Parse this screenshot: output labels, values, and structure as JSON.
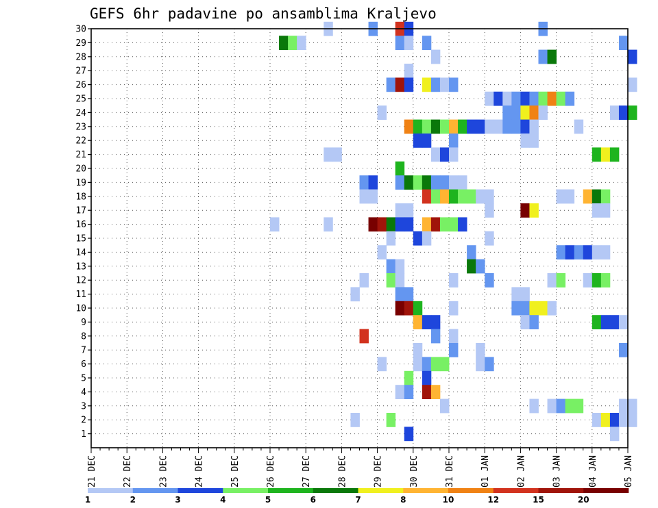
{
  "chart_data": {
    "type": "heatmap",
    "title": "GEFS 6hr padavine po ansamblima Kraljevo",
    "xlabel": "",
    "ylabel": "",
    "x_ticks": [
      "21 DEC",
      "22 DEC",
      "23 DEC",
      "24 DEC",
      "25 DEC",
      "26 DEC",
      "27 DEC",
      "28 DEC",
      "29 DEC",
      "30 DEC",
      "31 DEC",
      "01 JAN",
      "02 JAN",
      "03 JAN",
      "04 JAN",
      "05 JAN"
    ],
    "y_ticks": [
      "1",
      "2",
      "3",
      "4",
      "5",
      "6",
      "7",
      "8",
      "9",
      "10",
      "11",
      "12",
      "13",
      "14",
      "15",
      "16",
      "17",
      "18",
      "19",
      "20",
      "21",
      "22",
      "23",
      "24",
      "25",
      "26",
      "27",
      "28",
      "29",
      "30"
    ],
    "ylim": [
      0,
      30
    ],
    "x_steps_per_day": 4,
    "grid": true,
    "legend": {
      "placement": "bottom",
      "labels": [
        "1",
        "2",
        "3",
        "4",
        "5",
        "6",
        "7",
        "8",
        "10",
        "12",
        "15",
        "20"
      ],
      "colors": [
        "#b4c8f5",
        "#6496f0",
        "#1e46dc",
        "#78f064",
        "#1eb41e",
        "#0a780a",
        "#f0f01e",
        "#ffb432",
        "#f08214",
        "#d2321e",
        "#a0140a",
        "#780000"
      ]
    },
    "cells": [
      [
        30,
        26,
        0
      ],
      [
        30,
        31,
        1
      ],
      [
        30,
        34,
        9
      ],
      [
        30,
        35,
        2
      ],
      [
        30,
        50,
        1
      ],
      [
        29,
        21,
        5
      ],
      [
        29,
        22,
        3
      ],
      [
        29,
        23,
        0
      ],
      [
        29,
        34,
        1
      ],
      [
        29,
        35,
        0
      ],
      [
        29,
        37,
        1
      ],
      [
        29,
        59,
        1
      ],
      [
        28,
        38,
        0
      ],
      [
        28,
        50,
        1
      ],
      [
        28,
        51,
        5
      ],
      [
        28,
        60,
        2
      ],
      [
        27,
        35,
        0
      ],
      [
        26,
        33,
        1
      ],
      [
        26,
        34,
        10
      ],
      [
        26,
        35,
        2
      ],
      [
        26,
        37,
        6
      ],
      [
        26,
        38,
        1
      ],
      [
        26,
        39,
        0
      ],
      [
        26,
        40,
        1
      ],
      [
        26,
        60,
        0
      ],
      [
        25,
        44,
        0
      ],
      [
        25,
        45,
        2
      ],
      [
        25,
        46,
        0
      ],
      [
        25,
        47,
        1
      ],
      [
        25,
        48,
        2
      ],
      [
        25,
        49,
        1
      ],
      [
        25,
        50,
        3
      ],
      [
        25,
        51,
        8
      ],
      [
        25,
        52,
        3
      ],
      [
        25,
        53,
        1
      ],
      [
        24,
        32,
        0
      ],
      [
        24,
        46,
        1
      ],
      [
        24,
        47,
        1
      ],
      [
        24,
        48,
        6
      ],
      [
        24,
        49,
        8
      ],
      [
        24,
        50,
        0
      ],
      [
        24,
        58,
        0
      ],
      [
        24,
        59,
        2
      ],
      [
        24,
        60,
        4
      ],
      [
        23,
        35,
        8
      ],
      [
        23,
        36,
        4
      ],
      [
        23,
        37,
        3
      ],
      [
        23,
        38,
        5
      ],
      [
        23,
        39,
        3
      ],
      [
        23,
        40,
        7
      ],
      [
        23,
        41,
        4
      ],
      [
        23,
        42,
        2
      ],
      [
        23,
        43,
        2
      ],
      [
        23,
        44,
        0
      ],
      [
        23,
        45,
        0
      ],
      [
        23,
        46,
        1
      ],
      [
        23,
        47,
        1
      ],
      [
        23,
        48,
        2
      ],
      [
        23,
        49,
        0
      ],
      [
        23,
        54,
        0
      ],
      [
        22,
        36,
        2
      ],
      [
        22,
        37,
        2
      ],
      [
        22,
        40,
        1
      ],
      [
        22,
        48,
        0
      ],
      [
        22,
        49,
        0
      ],
      [
        21,
        26,
        0
      ],
      [
        21,
        27,
        0
      ],
      [
        21,
        38,
        0
      ],
      [
        21,
        39,
        2
      ],
      [
        21,
        40,
        0
      ],
      [
        21,
        56,
        4
      ],
      [
        21,
        57,
        6
      ],
      [
        21,
        58,
        4
      ],
      [
        20,
        34,
        4
      ],
      [
        19,
        30,
        1
      ],
      [
        19,
        31,
        2
      ],
      [
        19,
        34,
        1
      ],
      [
        19,
        35,
        5
      ],
      [
        19,
        36,
        3
      ],
      [
        19,
        37,
        5
      ],
      [
        19,
        38,
        1
      ],
      [
        19,
        39,
        1
      ],
      [
        19,
        40,
        0
      ],
      [
        19,
        41,
        0
      ],
      [
        18,
        30,
        0
      ],
      [
        18,
        31,
        0
      ],
      [
        18,
        37,
        9
      ],
      [
        18,
        38,
        3
      ],
      [
        18,
        39,
        7
      ],
      [
        18,
        40,
        4
      ],
      [
        18,
        41,
        3
      ],
      [
        18,
        42,
        3
      ],
      [
        18,
        43,
        0
      ],
      [
        18,
        44,
        0
      ],
      [
        18,
        52,
        0
      ],
      [
        18,
        53,
        0
      ],
      [
        18,
        55,
        7
      ],
      [
        18,
        56,
        5
      ],
      [
        18,
        57,
        3
      ],
      [
        17,
        34,
        0
      ],
      [
        17,
        35,
        0
      ],
      [
        17,
        44,
        0
      ],
      [
        17,
        48,
        11
      ],
      [
        17,
        49,
        6
      ],
      [
        17,
        56,
        0
      ],
      [
        17,
        57,
        0
      ],
      [
        16,
        20,
        0
      ],
      [
        16,
        26,
        0
      ],
      [
        16,
        31,
        11
      ],
      [
        16,
        32,
        10
      ],
      [
        16,
        33,
        5
      ],
      [
        16,
        34,
        2
      ],
      [
        16,
        35,
        2
      ],
      [
        16,
        37,
        7
      ],
      [
        16,
        38,
        10
      ],
      [
        16,
        39,
        3
      ],
      [
        16,
        40,
        3
      ],
      [
        16,
        41,
        2
      ],
      [
        15,
        33,
        0
      ],
      [
        15,
        36,
        2
      ],
      [
        15,
        37,
        0
      ],
      [
        15,
        44,
        0
      ],
      [
        14,
        32,
        0
      ],
      [
        14,
        42,
        1
      ],
      [
        14,
        52,
        1
      ],
      [
        14,
        53,
        2
      ],
      [
        14,
        54,
        1
      ],
      [
        14,
        55,
        2
      ],
      [
        14,
        56,
        0
      ],
      [
        14,
        57,
        0
      ],
      [
        13,
        33,
        1
      ],
      [
        13,
        34,
        0
      ],
      [
        13,
        42,
        5
      ],
      [
        13,
        43,
        1
      ],
      [
        12,
        30,
        0
      ],
      [
        12,
        33,
        3
      ],
      [
        12,
        34,
        0
      ],
      [
        12,
        40,
        0
      ],
      [
        12,
        44,
        1
      ],
      [
        12,
        51,
        0
      ],
      [
        12,
        52,
        3
      ],
      [
        12,
        55,
        0
      ],
      [
        12,
        56,
        4
      ],
      [
        12,
        57,
        3
      ],
      [
        11,
        29,
        0
      ],
      [
        11,
        34,
        1
      ],
      [
        11,
        35,
        1
      ],
      [
        11,
        47,
        0
      ],
      [
        11,
        48,
        0
      ],
      [
        10,
        34,
        11
      ],
      [
        10,
        35,
        10
      ],
      [
        10,
        36,
        4
      ],
      [
        10,
        40,
        0
      ],
      [
        10,
        47,
        1
      ],
      [
        10,
        48,
        1
      ],
      [
        10,
        49,
        6
      ],
      [
        10,
        50,
        6
      ],
      [
        10,
        51,
        0
      ],
      [
        9,
        36,
        7
      ],
      [
        9,
        37,
        2
      ],
      [
        9,
        38,
        2
      ],
      [
        9,
        48,
        0
      ],
      [
        9,
        49,
        1
      ],
      [
        9,
        56,
        4
      ],
      [
        9,
        57,
        2
      ],
      [
        9,
        58,
        2
      ],
      [
        9,
        59,
        0
      ],
      [
        8,
        30,
        9
      ],
      [
        8,
        38,
        1
      ],
      [
        8,
        40,
        0
      ],
      [
        7,
        36,
        0
      ],
      [
        7,
        40,
        1
      ],
      [
        7,
        43,
        0
      ],
      [
        7,
        59,
        1
      ],
      [
        6,
        32,
        0
      ],
      [
        6,
        36,
        0
      ],
      [
        6,
        37,
        1
      ],
      [
        6,
        38,
        3
      ],
      [
        6,
        39,
        3
      ],
      [
        6,
        43,
        0
      ],
      [
        6,
        44,
        1
      ],
      [
        5,
        35,
        3
      ],
      [
        5,
        37,
        2
      ],
      [
        4,
        34,
        0
      ],
      [
        4,
        35,
        1
      ],
      [
        4,
        37,
        10
      ],
      [
        4,
        38,
        7
      ],
      [
        3,
        39,
        0
      ],
      [
        3,
        49,
        0
      ],
      [
        3,
        51,
        0
      ],
      [
        3,
        52,
        1
      ],
      [
        3,
        53,
        3
      ],
      [
        3,
        54,
        3
      ],
      [
        3,
        59,
        0
      ],
      [
        3,
        60,
        0
      ],
      [
        2,
        29,
        0
      ],
      [
        2,
        33,
        3
      ],
      [
        2,
        56,
        0
      ],
      [
        2,
        57,
        6
      ],
      [
        2,
        58,
        2
      ],
      [
        2,
        59,
        0
      ],
      [
        2,
        60,
        0
      ],
      [
        1,
        35,
        2
      ],
      [
        1,
        58,
        0
      ]
    ]
  }
}
